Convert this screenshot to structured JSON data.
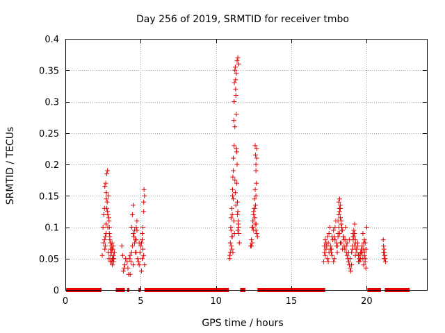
{
  "chart_data": {
    "type": "scatter",
    "title": "Day 256 of 2019, SRMTID for receiver tmbo",
    "xlabel": "GPS time / hours",
    "ylabel": "SRMTID / TECUs",
    "xlim": [
      0,
      24
    ],
    "ylim": [
      0,
      0.4
    ],
    "xticks": [
      0,
      5,
      10,
      15,
      20
    ],
    "xtick_labels": [
      "0",
      "5",
      "10",
      "15",
      "20"
    ],
    "yticks": [
      0,
      0.05,
      0.1,
      0.15,
      0.2,
      0.25,
      0.3,
      0.35,
      0.4
    ],
    "ytick_labels": [
      "0",
      "0.05",
      "0.1",
      "0.15",
      "0.2",
      "0.25",
      "0.3",
      "0.35",
      "0.4"
    ],
    "grid": true,
    "marker": "+",
    "color": "#e00000",
    "zero_segments": [
      [
        0.05,
        2.4
      ],
      [
        3.35,
        3.95
      ],
      [
        4.1,
        4.25
      ],
      [
        4.85,
        5.0
      ],
      [
        5.25,
        10.85
      ],
      [
        11.6,
        11.95
      ],
      [
        12.75,
        17.25
      ],
      [
        20.05,
        20.95
      ],
      [
        21.2,
        22.85
      ]
    ],
    "series": [
      {
        "name": "tmbo",
        "x": [
          2.45,
          2.5,
          2.55,
          2.6,
          2.62,
          2.65,
          2.68,
          2.7,
          2.72,
          2.75,
          2.78,
          2.8,
          2.82,
          2.85,
          2.88,
          2.9,
          2.92,
          2.95,
          2.98,
          3.0,
          3.02,
          3.05,
          3.08,
          3.1,
          3.12,
          3.15,
          3.18,
          3.2,
          3.22,
          3.25,
          2.55,
          2.6,
          2.65,
          2.7,
          2.75,
          2.8,
          2.85,
          2.9,
          2.95,
          3.0,
          3.05,
          3.1,
          3.15,
          3.2,
          2.62,
          2.72,
          2.82,
          2.92,
          3.02,
          3.12,
          3.75,
          3.8,
          3.85,
          3.9,
          3.95,
          4.0,
          4.1,
          4.15,
          4.2,
          4.25,
          4.3,
          4.35,
          4.4,
          4.45,
          4.5,
          4.55,
          4.6,
          4.65,
          4.7,
          4.75,
          4.8,
          4.85,
          4.9,
          4.95,
          5.0,
          5.05,
          5.1,
          5.15,
          5.2,
          5.25,
          4.4,
          4.45,
          4.5,
          4.55,
          4.6,
          4.65,
          4.7,
          4.75,
          5.05,
          5.1,
          5.15,
          5.2,
          5.25,
          4.3,
          4.5,
          4.7,
          4.9,
          5.1,
          5.2,
          5.22,
          10.9,
          10.92,
          10.95,
          10.98,
          11.0,
          11.02,
          11.05,
          11.08,
          11.1,
          11.12,
          11.15,
          11.18,
          11.2,
          11.22,
          11.25,
          11.28,
          11.3,
          11.32,
          11.35,
          11.38,
          11.4,
          11.42,
          11.45,
          11.48,
          11.5,
          11.52,
          11.55,
          10.95,
          11.0,
          11.05,
          11.1,
          11.15,
          11.2,
          11.25,
          11.3,
          11.35,
          11.4,
          11.45,
          11.5,
          11.05,
          11.15,
          11.25,
          11.35,
          11.45,
          11.08,
          11.18,
          11.28,
          11.38,
          11.42,
          11.48,
          11.12,
          11.22,
          11.32,
          12.3,
          12.35,
          12.4,
          12.45,
          12.5,
          12.55,
          12.6,
          12.65,
          12.7,
          12.75,
          12.4,
          12.45,
          12.5,
          12.55,
          12.6,
          12.65,
          12.7,
          12.35,
          12.45,
          12.55,
          12.65,
          12.7,
          12.6,
          12.62,
          12.65,
          12.68,
          12.62,
          12.66,
          12.5,
          12.58,
          17.15,
          17.2,
          17.25,
          17.3,
          17.35,
          17.4,
          17.45,
          17.5,
          17.55,
          17.6,
          17.65,
          17.7,
          17.75,
          17.8,
          17.85,
          17.9,
          17.95,
          18.0,
          18.05,
          18.1,
          18.15,
          18.2,
          18.25,
          18.3,
          18.35,
          18.4,
          18.45,
          18.5,
          18.55,
          18.6,
          18.65,
          18.7,
          18.75,
          18.8,
          18.85,
          18.9,
          18.95,
          19.0,
          19.05,
          19.1,
          19.15,
          19.2,
          19.25,
          19.3,
          19.35,
          19.4,
          19.45,
          19.5,
          19.55,
          19.6,
          19.65,
          19.7,
          19.75,
          19.8,
          19.85,
          19.9,
          19.95,
          20.0,
          17.2,
          17.3,
          17.4,
          17.5,
          17.6,
          17.7,
          17.8,
          17.9,
          18.0,
          18.1,
          18.2,
          18.3,
          18.4,
          18.5,
          18.6,
          18.7,
          18.8,
          18.9,
          19.0,
          19.1,
          19.2,
          19.3,
          19.4,
          19.5,
          19.6,
          19.7,
          19.8,
          19.9,
          17.25,
          17.45,
          17.65,
          17.85,
          18.05,
          18.25,
          18.45,
          18.65,
          18.85,
          19.05,
          19.25,
          19.45,
          19.65,
          19.85,
          18.1,
          18.15,
          18.2,
          18.25,
          18.3,
          18.35,
          19.1,
          19.15,
          19.2,
          19.25,
          19.75,
          19.8,
          19.85,
          19.9,
          19.95,
          18.15,
          18.2,
          18.25,
          21.1,
          21.12,
          21.15,
          21.18,
          21.2,
          21.22,
          21.25,
          21.15,
          21.2,
          21.12
        ],
        "y": [
          0.055,
          0.1,
          0.075,
          0.13,
          0.065,
          0.085,
          0.17,
          0.09,
          0.155,
          0.185,
          0.14,
          0.125,
          0.1,
          0.06,
          0.115,
          0.05,
          0.09,
          0.08,
          0.045,
          0.065,
          0.055,
          0.07,
          0.045,
          0.065,
          0.04,
          0.05,
          0.07,
          0.055,
          0.05,
          0.06,
          0.12,
          0.08,
          0.07,
          0.105,
          0.13,
          0.19,
          0.15,
          0.11,
          0.085,
          0.075,
          0.06,
          0.075,
          0.065,
          0.045,
          0.165,
          0.145,
          0.12,
          0.1,
          0.06,
          0.05,
          0.07,
          0.055,
          0.03,
          0.035,
          0.04,
          0.05,
          0.045,
          0.035,
          0.025,
          0.05,
          0.055,
          0.045,
          0.06,
          0.07,
          0.09,
          0.085,
          0.075,
          0.06,
          0.08,
          0.095,
          0.05,
          0.045,
          0.04,
          0.06,
          0.07,
          0.075,
          0.08,
          0.065,
          0.055,
          0.04,
          0.1,
          0.12,
          0.135,
          0.085,
          0.095,
          0.08,
          0.1,
          0.11,
          0.03,
          0.05,
          0.1,
          0.125,
          0.15,
          0.025,
          0.04,
          0.06,
          0.075,
          0.09,
          0.14,
          0.16,
          0.05,
          0.055,
          0.06,
          0.1,
          0.115,
          0.07,
          0.085,
          0.12,
          0.15,
          0.18,
          0.21,
          0.27,
          0.3,
          0.33,
          0.35,
          0.355,
          0.32,
          0.31,
          0.28,
          0.22,
          0.2,
          0.14,
          0.125,
          0.11,
          0.1,
          0.09,
          0.075,
          0.075,
          0.095,
          0.13,
          0.16,
          0.19,
          0.23,
          0.26,
          0.335,
          0.345,
          0.365,
          0.37,
          0.36,
          0.065,
          0.145,
          0.175,
          0.225,
          0.095,
          0.085,
          0.11,
          0.155,
          0.17,
          0.12,
          0.105,
          0.06,
          0.09,
          0.135,
          0.07,
          0.08,
          0.1,
          0.11,
          0.12,
          0.13,
          0.105,
          0.095,
          0.09,
          0.085,
          0.075,
          0.11,
          0.125,
          0.145,
          0.16,
          0.19,
          0.225,
          0.07,
          0.1,
          0.13,
          0.15,
          0.21,
          0.23,
          0.215,
          0.2,
          0.17,
          0.135,
          0.105,
          0.095,
          0.115,
          0.045,
          0.06,
          0.08,
          0.065,
          0.07,
          0.085,
          0.075,
          0.09,
          0.1,
          0.07,
          0.06,
          0.055,
          0.08,
          0.095,
          0.085,
          0.1,
          0.11,
          0.075,
          0.07,
          0.09,
          0.1,
          0.125,
          0.135,
          0.11,
          0.1,
          0.095,
          0.085,
          0.07,
          0.065,
          0.08,
          0.06,
          0.055,
          0.05,
          0.045,
          0.04,
          0.035,
          0.03,
          0.06,
          0.07,
          0.08,
          0.085,
          0.09,
          0.075,
          0.065,
          0.06,
          0.07,
          0.055,
          0.05,
          0.045,
          0.06,
          0.065,
          0.07,
          0.05,
          0.04,
          0.055,
          0.045,
          0.035,
          0.1,
          0.07,
          0.075,
          0.05,
          0.06,
          0.065,
          0.085,
          0.045,
          0.08,
          0.07,
          0.085,
          0.09,
          0.075,
          0.065,
          0.08,
          0.1,
          0.075,
          0.06,
          0.05,
          0.04,
          0.085,
          0.07,
          0.065,
          0.075,
          0.055,
          0.05,
          0.06,
          0.065,
          0.075,
          0.055,
          0.045,
          0.065,
          0.05,
          0.06,
          0.075,
          0.085,
          0.07,
          0.08,
          0.065,
          0.055,
          0.045,
          0.06,
          0.08,
          0.11,
          0.12,
          0.13,
          0.115,
          0.105,
          0.095,
          0.09,
          0.095,
          0.105,
          0.08,
          0.09,
          0.075,
          0.06,
          0.05,
          0.065,
          0.14,
          0.145,
          0.13,
          0.08,
          0.07,
          0.065,
          0.06,
          0.055,
          0.05,
          0.045,
          0.05,
          0.055,
          0.06
        ]
      }
    ]
  }
}
